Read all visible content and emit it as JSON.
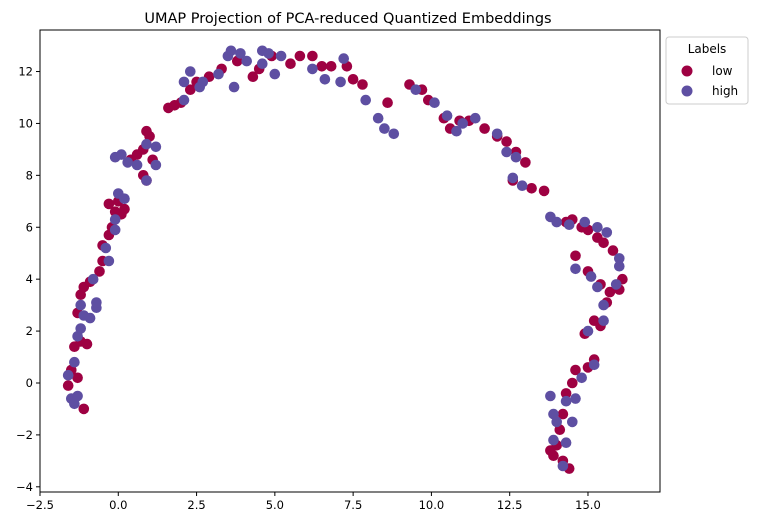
{
  "chart_data": {
    "type": "scatter",
    "title": "UMAP Projection of PCA-reduced Quantized Embeddings",
    "xlabel": "",
    "ylabel": "",
    "xlim": [
      -2.5,
      17.3
    ],
    "ylim": [
      -4.2,
      13.6
    ],
    "x_ticks": [
      -2.5,
      0.0,
      2.5,
      5.0,
      7.5,
      10.0,
      12.5,
      15.0
    ],
    "x_tick_labels": [
      "−2.5",
      "0.0",
      "2.5",
      "5.0",
      "7.5",
      "10.0",
      "12.5",
      "15.0"
    ],
    "y_ticks": [
      -4,
      -2,
      0,
      2,
      4,
      6,
      8,
      10,
      12
    ],
    "y_tick_labels": [
      "−4",
      "−2",
      "0",
      "2",
      "4",
      "6",
      "8",
      "10",
      "12"
    ],
    "grid": false,
    "legend": {
      "title": "Labels",
      "placement": "outside-top-right"
    },
    "series": [
      {
        "name": "low",
        "color": "#9e0142",
        "points": [
          [
            -1.6,
            -0.1
          ],
          [
            -1.5,
            0.5
          ],
          [
            -1.3,
            0.2
          ],
          [
            -1.1,
            -1.0
          ],
          [
            -1.4,
            1.4
          ],
          [
            -1.2,
            1.6
          ],
          [
            -1.0,
            1.5
          ],
          [
            -1.3,
            2.7
          ],
          [
            -1.2,
            3.4
          ],
          [
            -1.1,
            3.7
          ],
          [
            -0.9,
            3.9
          ],
          [
            -0.6,
            4.3
          ],
          [
            -0.5,
            4.7
          ],
          [
            -0.5,
            5.3
          ],
          [
            -0.3,
            5.7
          ],
          [
            -0.2,
            6.0
          ],
          [
            -0.1,
            6.6
          ],
          [
            0.1,
            6.5
          ],
          [
            0.2,
            6.7
          ],
          [
            -0.3,
            6.9
          ],
          [
            0.0,
            7.0
          ],
          [
            0.4,
            8.6
          ],
          [
            0.6,
            8.8
          ],
          [
            0.8,
            9.0
          ],
          [
            0.9,
            9.7
          ],
          [
            1.0,
            9.5
          ],
          [
            1.1,
            8.6
          ],
          [
            0.8,
            8.0
          ],
          [
            0.9,
            7.8
          ],
          [
            1.6,
            10.6
          ],
          [
            1.8,
            10.7
          ],
          [
            2.0,
            10.8
          ],
          [
            2.3,
            11.3
          ],
          [
            2.5,
            11.6
          ],
          [
            2.9,
            11.8
          ],
          [
            3.3,
            12.1
          ],
          [
            3.8,
            12.4
          ],
          [
            4.3,
            11.8
          ],
          [
            4.5,
            12.1
          ],
          [
            4.9,
            12.6
          ],
          [
            5.5,
            12.3
          ],
          [
            5.8,
            12.6
          ],
          [
            6.2,
            12.6
          ],
          [
            6.5,
            12.2
          ],
          [
            6.8,
            12.2
          ],
          [
            7.3,
            12.2
          ],
          [
            7.5,
            11.7
          ],
          [
            7.8,
            11.5
          ],
          [
            8.6,
            10.8
          ],
          [
            9.3,
            11.5
          ],
          [
            9.7,
            11.3
          ],
          [
            9.9,
            10.9
          ],
          [
            10.4,
            10.2
          ],
          [
            10.6,
            9.8
          ],
          [
            10.9,
            10.1
          ],
          [
            11.2,
            10.1
          ],
          [
            11.7,
            9.8
          ],
          [
            12.1,
            9.5
          ],
          [
            12.4,
            9.3
          ],
          [
            12.7,
            8.9
          ],
          [
            13.0,
            8.5
          ],
          [
            12.6,
            7.8
          ],
          [
            13.2,
            7.5
          ],
          [
            13.6,
            7.4
          ],
          [
            14.3,
            6.2
          ],
          [
            14.5,
            6.3
          ],
          [
            14.8,
            6.0
          ],
          [
            15.0,
            5.9
          ],
          [
            15.3,
            5.6
          ],
          [
            15.5,
            5.4
          ],
          [
            15.8,
            5.1
          ],
          [
            14.6,
            4.9
          ],
          [
            15.0,
            4.3
          ],
          [
            15.4,
            3.8
          ],
          [
            15.7,
            3.5
          ],
          [
            16.0,
            3.6
          ],
          [
            16.1,
            4.0
          ],
          [
            15.6,
            3.1
          ],
          [
            15.2,
            2.4
          ],
          [
            15.4,
            2.2
          ],
          [
            14.9,
            1.9
          ],
          [
            15.0,
            0.6
          ],
          [
            15.2,
            0.9
          ],
          [
            14.6,
            0.5
          ],
          [
            14.5,
            0.0
          ],
          [
            14.3,
            -0.4
          ],
          [
            14.2,
            -1.2
          ],
          [
            14.1,
            -1.8
          ],
          [
            14.0,
            -2.4
          ],
          [
            13.9,
            -2.8
          ],
          [
            14.2,
            -3.0
          ],
          [
            14.4,
            -3.3
          ],
          [
            13.8,
            -2.6
          ]
        ]
      },
      {
        "name": "high",
        "color": "#5e4fa2",
        "points": [
          [
            -1.5,
            -0.6
          ],
          [
            -1.4,
            -0.8
          ],
          [
            -1.3,
            -0.5
          ],
          [
            -1.6,
            0.3
          ],
          [
            -1.4,
            0.8
          ],
          [
            -1.3,
            1.8
          ],
          [
            -1.2,
            2.1
          ],
          [
            -1.1,
            2.6
          ],
          [
            -0.9,
            2.5
          ],
          [
            -0.7,
            2.9
          ],
          [
            -0.7,
            3.1
          ],
          [
            -1.2,
            3.0
          ],
          [
            -0.8,
            4.0
          ],
          [
            -0.3,
            4.7
          ],
          [
            -0.4,
            5.2
          ],
          [
            -0.1,
            5.9
          ],
          [
            0.0,
            7.3
          ],
          [
            0.2,
            7.1
          ],
          [
            -0.1,
            6.3
          ],
          [
            -0.1,
            8.7
          ],
          [
            0.1,
            8.8
          ],
          [
            0.3,
            8.5
          ],
          [
            0.6,
            8.4
          ],
          [
            0.9,
            9.2
          ],
          [
            1.2,
            9.1
          ],
          [
            1.2,
            8.4
          ],
          [
            0.9,
            7.8
          ],
          [
            2.1,
            10.9
          ],
          [
            2.1,
            11.6
          ],
          [
            2.3,
            12.0
          ],
          [
            2.6,
            11.4
          ],
          [
            2.7,
            11.6
          ],
          [
            3.2,
            11.9
          ],
          [
            3.5,
            12.6
          ],
          [
            3.6,
            12.8
          ],
          [
            3.9,
            12.7
          ],
          [
            4.1,
            12.4
          ],
          [
            3.7,
            11.4
          ],
          [
            4.6,
            12.8
          ],
          [
            4.8,
            12.7
          ],
          [
            5.2,
            12.6
          ],
          [
            4.6,
            12.3
          ],
          [
            5.0,
            11.9
          ],
          [
            6.2,
            12.1
          ],
          [
            6.6,
            11.7
          ],
          [
            7.2,
            12.5
          ],
          [
            7.1,
            11.6
          ],
          [
            7.9,
            10.9
          ],
          [
            8.3,
            10.2
          ],
          [
            8.5,
            9.8
          ],
          [
            8.8,
            9.6
          ],
          [
            9.5,
            11.3
          ],
          [
            10.1,
            10.8
          ],
          [
            10.5,
            10.3
          ],
          [
            10.8,
            9.7
          ],
          [
            11.0,
            10.0
          ],
          [
            11.4,
            10.2
          ],
          [
            12.1,
            9.6
          ],
          [
            12.4,
            8.9
          ],
          [
            12.7,
            8.7
          ],
          [
            12.6,
            7.9
          ],
          [
            12.9,
            7.6
          ],
          [
            13.8,
            6.4
          ],
          [
            14.0,
            6.2
          ],
          [
            14.4,
            6.1
          ],
          [
            14.9,
            6.2
          ],
          [
            15.3,
            6.0
          ],
          [
            15.6,
            5.8
          ],
          [
            16.0,
            4.8
          ],
          [
            16.0,
            4.5
          ],
          [
            14.6,
            4.4
          ],
          [
            15.1,
            4.1
          ],
          [
            15.3,
            3.7
          ],
          [
            15.9,
            3.8
          ],
          [
            15.5,
            3.0
          ],
          [
            15.0,
            2.0
          ],
          [
            15.5,
            2.4
          ],
          [
            15.2,
            0.7
          ],
          [
            14.8,
            0.2
          ],
          [
            14.6,
            -0.6
          ],
          [
            14.3,
            -0.7
          ],
          [
            13.8,
            -0.5
          ],
          [
            13.9,
            -1.2
          ],
          [
            14.0,
            -1.5
          ],
          [
            13.9,
            -2.2
          ],
          [
            14.3,
            -2.3
          ],
          [
            14.2,
            -3.2
          ],
          [
            14.5,
            -1.5
          ]
        ]
      }
    ]
  }
}
